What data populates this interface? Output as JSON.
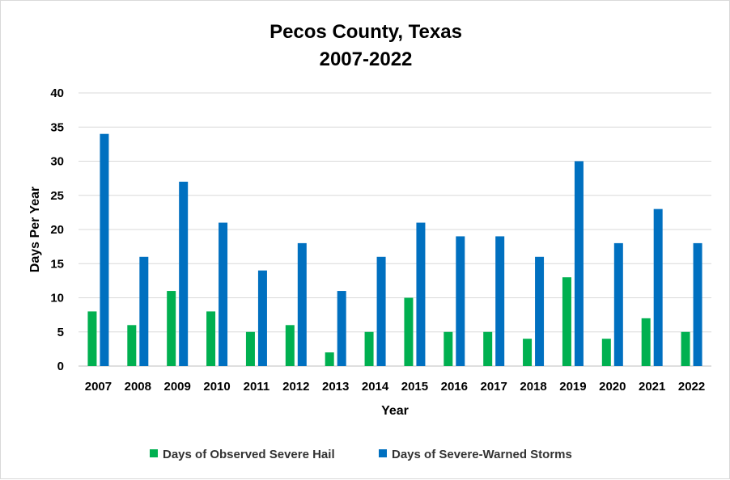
{
  "chart_data": {
    "type": "bar",
    "title": "Pecos County, Texas",
    "subtitle": "2007-2022",
    "xlabel": "Year",
    "ylabel": "Days Per Year",
    "ylim": [
      0,
      40
    ],
    "yticks": [
      "0",
      "5",
      "10",
      "15",
      "20",
      "25",
      "30",
      "35",
      "40"
    ],
    "grid": true,
    "legend_position": "bottom",
    "categories": [
      "2007",
      "2008",
      "2009",
      "2010",
      "2011",
      "2012",
      "2013",
      "2014",
      "2015",
      "2016",
      "2017",
      "2018",
      "2019",
      "2020",
      "2021",
      "2022"
    ],
    "series": [
      {
        "name": "Days of Observed Severe Hail",
        "color": "#00b050",
        "values": [
          8,
          6,
          11,
          8,
          5,
          6,
          2,
          5,
          10,
          5,
          5,
          4,
          13,
          4,
          7,
          5
        ]
      },
      {
        "name": "Days of Severe-Warned Storms",
        "color": "#0070c0",
        "values": [
          34,
          16,
          27,
          21,
          14,
          18,
          11,
          16,
          21,
          19,
          19,
          16,
          30,
          18,
          23,
          18
        ]
      }
    ]
  }
}
